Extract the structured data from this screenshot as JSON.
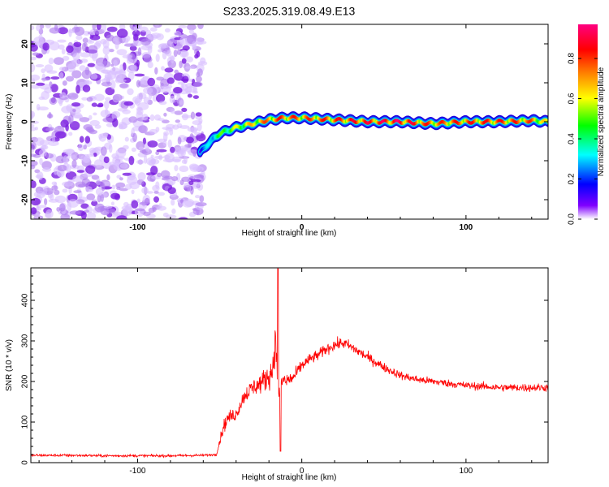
{
  "chart_data": [
    {
      "type": "heatmap",
      "title": "S233.2025.319.08.49.E13",
      "xlabel": "Height of straight line (km)",
      "ylabel": "Frequency (Hz)",
      "xlim": [
        -165,
        150
      ],
      "ylim": [
        -25,
        25
      ],
      "x_ticks": [
        -100,
        0,
        100
      ],
      "y_ticks": [
        20,
        10,
        0,
        -10,
        -20
      ],
      "x_tick_labels": [
        "-100",
        "0",
        "100"
      ],
      "y_tick_labels": [
        "20",
        "10",
        "0",
        "-10",
        "-20"
      ],
      "noise_region_x": [
        -165,
        -60
      ],
      "signal_ridge": {
        "x": [
          -62,
          -58,
          -50,
          -40,
          -30,
          -20,
          -10,
          0,
          20,
          40,
          60,
          80,
          100,
          120,
          140,
          150
        ],
        "freq_hz": [
          -8,
          -6,
          -3,
          -1.5,
          -0.5,
          0.5,
          1,
          1,
          0.5,
          0,
          0,
          -0.5,
          0,
          0,
          0.3,
          0
        ],
        "amplitude": [
          0.15,
          0.3,
          0.5,
          0.6,
          0.7,
          0.8,
          0.85,
          0.8,
          0.85,
          0.9,
          0.95,
          0.8,
          0.85,
          0.85,
          0.8,
          0.6
        ]
      },
      "colorbar": {
        "label": "Normalized spectral amplitude",
        "range": [
          0,
          0.97
        ],
        "ticks": [
          0,
          0.2,
          0.4,
          0.6,
          0.8
        ],
        "tick_labels": [
          "0.0",
          "0.2",
          "0.4",
          "0.6",
          "0.8"
        ],
        "colors": [
          "#ffffff",
          "#8000ff",
          "#0000ff",
          "#00ffff",
          "#00ff00",
          "#ffff00",
          "#ff8000",
          "#ff0000",
          "#ff0080"
        ]
      }
    },
    {
      "type": "line",
      "title": "",
      "xlabel": "Height of straight line (km)",
      "ylabel": "SNR (10 * v/v)",
      "xlim": [
        -165,
        150
      ],
      "ylim": [
        0,
        480
      ],
      "x_ticks": [
        -100,
        0,
        100
      ],
      "y_ticks": [
        0,
        100,
        200,
        300,
        400
      ],
      "x_tick_labels": [
        "-100",
        "0",
        "100"
      ],
      "y_tick_labels": [
        "0",
        "100",
        "200",
        "300",
        "400"
      ],
      "line_color": "#ff0000",
      "series": [
        {
          "name": "SNR",
          "x": [
            -165,
            -140,
            -120,
            -100,
            -80,
            -60,
            -52,
            -48,
            -45,
            -40,
            -35,
            -30,
            -25,
            -20,
            -18,
            -16,
            -14,
            -12,
            -10,
            -5,
            0,
            5,
            10,
            15,
            20,
            25,
            30,
            40,
            50,
            60,
            70,
            80,
            90,
            100,
            110,
            120,
            130,
            140,
            150
          ],
          "mean": [
            18,
            18,
            17,
            17,
            17,
            18,
            20,
            85,
            110,
            120,
            165,
            185,
            195,
            215,
            225,
            300,
            150,
            205,
            200,
            210,
            240,
            255,
            265,
            280,
            290,
            295,
            285,
            260,
            235,
            215,
            205,
            200,
            195,
            190,
            188,
            185,
            185,
            185,
            185
          ],
          "noise": [
            6,
            6,
            6,
            6,
            6,
            6,
            5,
            30,
            30,
            30,
            35,
            40,
            45,
            60,
            60,
            80,
            70,
            55,
            40,
            30,
            28,
            25,
            25,
            25,
            25,
            25,
            25,
            22,
            20,
            18,
            18,
            17,
            17,
            17,
            17,
            17,
            18,
            18,
            18
          ],
          "peak": {
            "x": -14.5,
            "y": 478
          },
          "dip": {
            "x": -13,
            "y": 28
          }
        }
      ]
    }
  ]
}
